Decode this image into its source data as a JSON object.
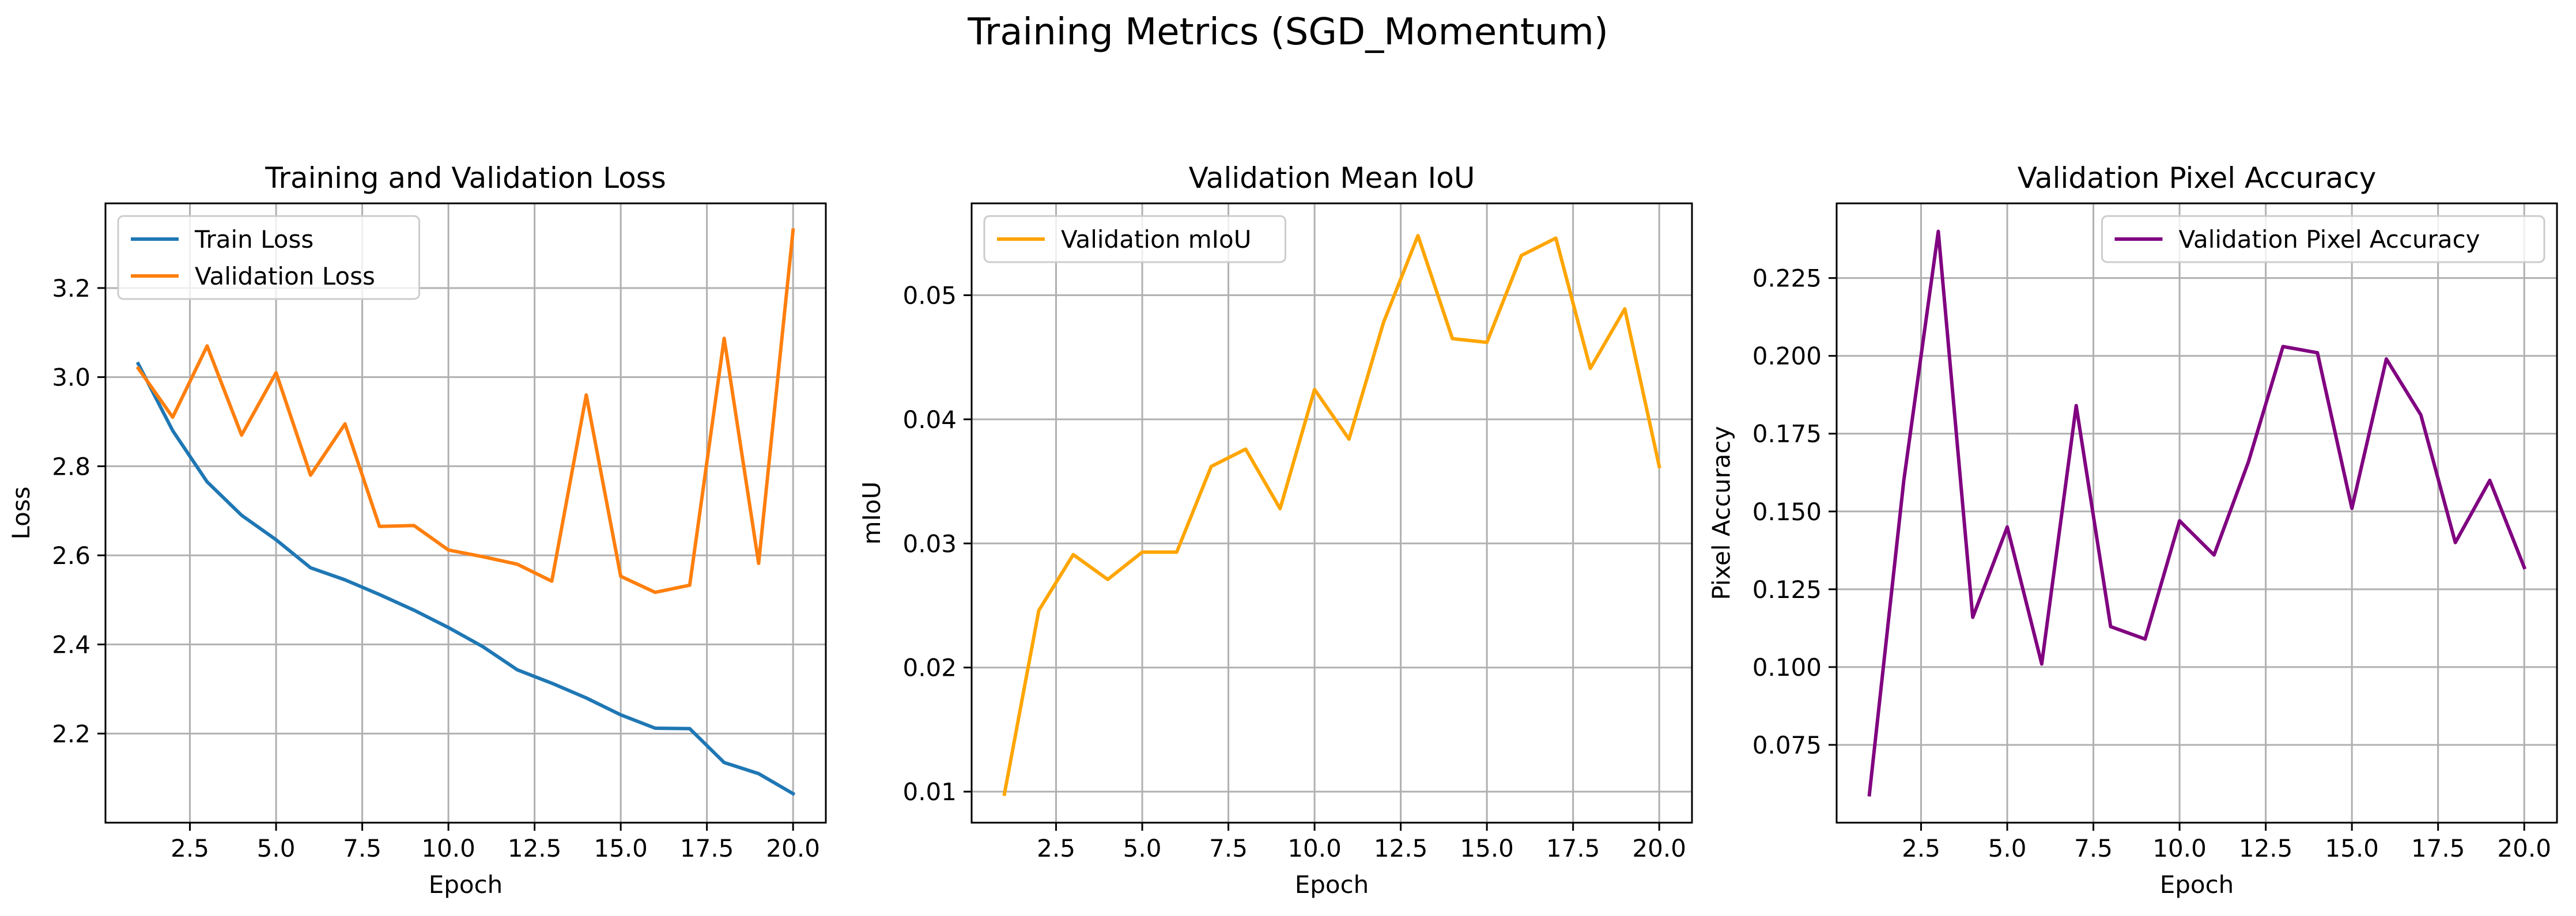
{
  "figure": {
    "suptitle": "Training Metrics (SGD_Momentum)"
  },
  "chart_data": [
    {
      "type": "line",
      "title": "Training and Validation Loss",
      "xlabel": "Epoch",
      "ylabel": "Loss",
      "xlim": [
        0.05,
        20.95
      ],
      "ylim": [
        2.0,
        3.39
      ],
      "xticks": [
        2.5,
        5.0,
        7.5,
        10.0,
        12.5,
        15.0,
        17.5,
        20.0
      ],
      "xtick_labels": [
        "2.5",
        "5.0",
        "7.5",
        "10.0",
        "12.5",
        "15.0",
        "17.5",
        "20.0"
      ],
      "yticks": [
        2.2,
        2.4,
        2.6,
        2.8,
        3.0,
        3.2
      ],
      "ytick_labels": [
        "2.2",
        "2.4",
        "2.6",
        "2.8",
        "3.0",
        "3.2"
      ],
      "grid": true,
      "legend_position": "upper-left",
      "x": [
        1,
        2,
        3,
        4,
        5,
        6,
        7,
        8,
        9,
        10,
        11,
        12,
        13,
        14,
        15,
        16,
        17,
        18,
        19,
        20
      ],
      "series": [
        {
          "name": "Train Loss",
          "color": "#1f77b4",
          "values": [
            3.03,
            2.88,
            2.765,
            2.69,
            2.635,
            2.572,
            2.545,
            2.512,
            2.477,
            2.438,
            2.395,
            2.343,
            2.313,
            2.28,
            2.242,
            2.212,
            2.211,
            2.135,
            2.11,
            2.065
          ]
        },
        {
          "name": "Validation Loss",
          "color": "#ff7f0e",
          "values": [
            3.02,
            2.91,
            3.07,
            2.87,
            3.01,
            2.78,
            2.895,
            2.665,
            2.667,
            2.612,
            2.597,
            2.58,
            2.542,
            2.96,
            2.553,
            2.517,
            2.533,
            3.087,
            2.582,
            3.33
          ]
        }
      ]
    },
    {
      "type": "line",
      "title": "Validation Mean IoU",
      "xlabel": "Epoch",
      "ylabel": "mIoU",
      "xlim": [
        0.05,
        20.95
      ],
      "ylim": [
        0.0075,
        0.0574
      ],
      "xticks": [
        2.5,
        5.0,
        7.5,
        10.0,
        12.5,
        15.0,
        17.5,
        20.0
      ],
      "xtick_labels": [
        "2.5",
        "5.0",
        "7.5",
        "10.0",
        "12.5",
        "15.0",
        "17.5",
        "20.0"
      ],
      "yticks": [
        0.01,
        0.02,
        0.03,
        0.04,
        0.05
      ],
      "ytick_labels": [
        "0.01",
        "0.02",
        "0.03",
        "0.04",
        "0.05"
      ],
      "grid": true,
      "legend_position": "upper-left",
      "x": [
        1,
        2,
        3,
        4,
        5,
        6,
        7,
        8,
        9,
        10,
        11,
        12,
        13,
        14,
        15,
        16,
        17,
        18,
        19,
        20
      ],
      "series": [
        {
          "name": "Validation mIoU",
          "color": "#ffa500",
          "values": [
            0.0098,
            0.0246,
            0.0291,
            0.0271,
            0.0293,
            0.0293,
            0.0362,
            0.0376,
            0.0328,
            0.0424,
            0.0384,
            0.0478,
            0.0548,
            0.0465,
            0.0462,
            0.0532,
            0.0546,
            0.0441,
            0.0489,
            0.0362
          ]
        }
      ]
    },
    {
      "type": "line",
      "title": "Validation Pixel Accuracy",
      "xlabel": "Epoch",
      "ylabel": "Pixel Accuracy",
      "xlim": [
        0.05,
        20.95
      ],
      "ylim": [
        0.05,
        0.249
      ],
      "xticks": [
        2.5,
        5.0,
        7.5,
        10.0,
        12.5,
        15.0,
        17.5,
        20.0
      ],
      "xtick_labels": [
        "2.5",
        "5.0",
        "7.5",
        "10.0",
        "12.5",
        "15.0",
        "17.5",
        "20.0"
      ],
      "yticks": [
        0.075,
        0.1,
        0.125,
        0.15,
        0.175,
        0.2,
        0.225
      ],
      "ytick_labels": [
        "0.075",
        "0.100",
        "0.125",
        "0.150",
        "0.175",
        "0.200",
        "0.225"
      ],
      "grid": true,
      "legend_position": "upper-right",
      "x": [
        1,
        2,
        3,
        4,
        5,
        6,
        7,
        8,
        9,
        10,
        11,
        12,
        13,
        14,
        15,
        16,
        17,
        18,
        19,
        20
      ],
      "series": [
        {
          "name": "Validation Pixel Accuracy",
          "color": "#800080",
          "values": [
            0.059,
            0.16,
            0.24,
            0.116,
            0.145,
            0.101,
            0.184,
            0.113,
            0.109,
            0.147,
            0.136,
            0.166,
            0.203,
            0.201,
            0.151,
            0.199,
            0.181,
            0.14,
            0.16,
            0.132
          ]
        }
      ]
    }
  ]
}
